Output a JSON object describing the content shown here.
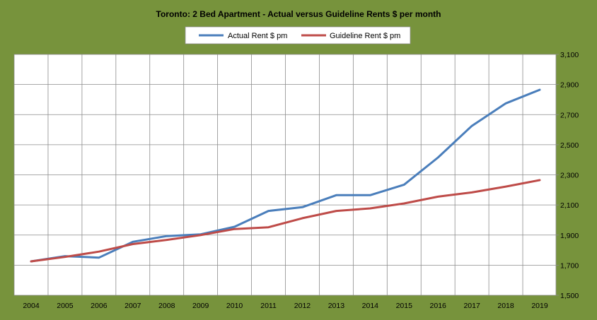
{
  "chart_data": {
    "type": "line",
    "title": "Toronto: 2  Bed Apartment - Actual versus Guideline Rents $ per month",
    "xlabel": "",
    "ylabel": "",
    "categories": [
      "2004",
      "2005",
      "2006",
      "2007",
      "2008",
      "2009",
      "2010",
      "2011",
      "2012",
      "2013",
      "2014",
      "2015",
      "2016",
      "2017",
      "2018",
      "2019"
    ],
    "y_ticks": [
      "1,500",
      "1,700",
      "1,900",
      "2,100",
      "2,300",
      "2,500",
      "2,700",
      "2,900",
      "3,100"
    ],
    "ylim": [
      1500,
      3100
    ],
    "y_axis_position": "right",
    "grid": true,
    "legend_position": "top",
    "series": [
      {
        "name": "Actual Rent $ pm",
        "color": "#4a7ebb",
        "values": [
          1725,
          1760,
          1750,
          1855,
          1893,
          1905,
          1955,
          2060,
          2085,
          2165,
          2165,
          2235,
          2415,
          2625,
          2775,
          2865
        ]
      },
      {
        "name": "Guideline Rent $ pm",
        "color": "#be4b48",
        "values": [
          1725,
          1755,
          1790,
          1840,
          1868,
          1900,
          1940,
          1952,
          2012,
          2060,
          2077,
          2110,
          2155,
          2183,
          2222,
          2265
        ]
      }
    ]
  }
}
